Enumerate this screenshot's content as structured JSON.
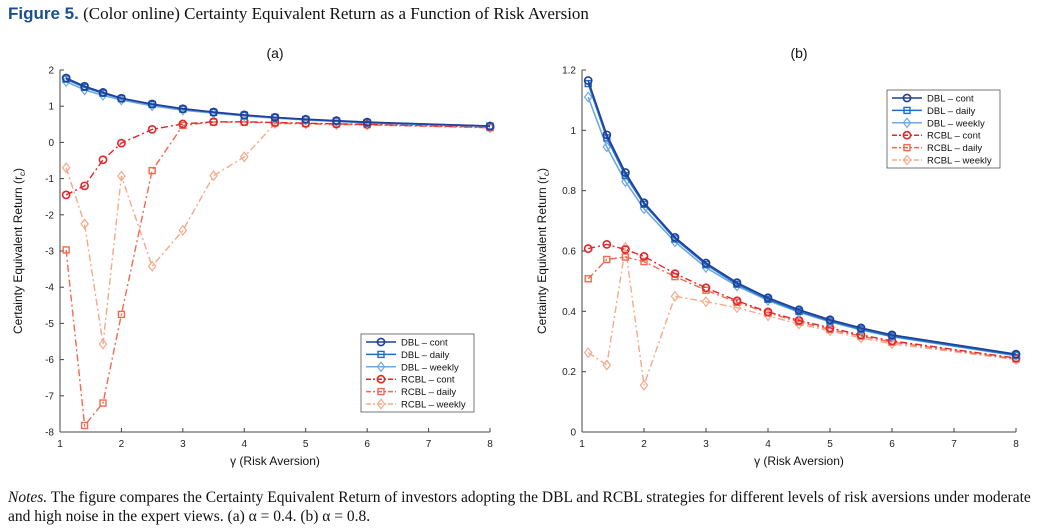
{
  "figure": {
    "label": "Figure 5.",
    "title": "(Color online) Certainty Equivalent Return as a Function of Risk Aversion"
  },
  "notes": {
    "lead": "Notes.",
    "text": "The figure compares the Certainty Equivalent Return of investors adopting the DBL and RCBL strategies for different levels of risk aversions under moderate and high noise in the expert views. (a) α = 0.4. (b) α = 0.8."
  },
  "series_styles": [
    {
      "name": "DBL – cont",
      "color": "#1f3f9a",
      "marker": "circle",
      "dash": ""
    },
    {
      "name": "DBL – daily",
      "color": "#1f6fbf",
      "marker": "square",
      "dash": ""
    },
    {
      "name": "DBL – weekly",
      "color": "#6fa8e0",
      "marker": "diamond",
      "dash": ""
    },
    {
      "name": "RCBL – cont",
      "color": "#e0262b",
      "marker": "circle",
      "dash": "7,3,2,3"
    },
    {
      "name": "RCBL – daily",
      "color": "#ef6a4f",
      "marker": "square",
      "dash": "7,3,2,3"
    },
    {
      "name": "RCBL – weekly",
      "color": "#f6a98a",
      "marker": "diamond",
      "dash": "7,3,2,3"
    }
  ],
  "chart_data": [
    {
      "type": "line",
      "title": "(a)",
      "xlabel": "γ (Risk Aversion)",
      "ylabel": "Certainty Equivalent Return (r",
      "ylabel_sub": "c",
      "xlim": [
        1,
        8
      ],
      "ylim": [
        -8,
        2
      ],
      "xticks": [
        1,
        2,
        3,
        4,
        5,
        6,
        7,
        8
      ],
      "yticks": [
        -8,
        -7,
        -6,
        -5,
        -4,
        -3,
        -2,
        -1,
        0,
        1,
        2
      ],
      "legend": "bottom-right",
      "x": [
        1.1,
        1.4,
        1.7,
        2,
        2.5,
        3,
        3.5,
        4,
        4.5,
        5,
        5.5,
        6,
        8
      ],
      "series": [
        {
          "name": "DBL – cont",
          "values": [
            1.78,
            1.55,
            1.38,
            1.22,
            1.06,
            0.93,
            0.84,
            0.76,
            0.69,
            0.64,
            0.6,
            0.56,
            0.45
          ]
        },
        {
          "name": "DBL – daily",
          "values": [
            1.75,
            1.52,
            1.36,
            1.21,
            1.05,
            0.92,
            0.83,
            0.75,
            0.69,
            0.63,
            0.59,
            0.55,
            0.45
          ]
        },
        {
          "name": "DBL – weekly",
          "values": [
            1.68,
            1.45,
            1.3,
            1.17,
            1.01,
            0.89,
            0.81,
            0.73,
            0.67,
            0.62,
            0.58,
            0.54,
            0.44
          ]
        },
        {
          "name": "RCBL – cont",
          "values": [
            -1.45,
            -1.2,
            -0.48,
            -0.02,
            0.36,
            0.51,
            0.57,
            0.57,
            0.55,
            0.53,
            0.51,
            0.5,
            0.42
          ]
        },
        {
          "name": "RCBL – daily",
          "values": [
            -2.97,
            -7.82,
            -7.2,
            -4.75,
            -0.78,
            0.47,
            0.56,
            0.56,
            0.54,
            0.52,
            0.51,
            0.49,
            0.41
          ]
        },
        {
          "name": "RCBL – weekly",
          "values": [
            -0.7,
            -2.25,
            -5.57,
            -0.93,
            -3.42,
            -2.43,
            -0.92,
            -0.4,
            0.52,
            0.51,
            0.49,
            0.48,
            0.4
          ]
        }
      ]
    },
    {
      "type": "line",
      "title": "(b)",
      "xlabel": "γ (Risk Aversion)",
      "ylabel": "Certainty Equivalent Return (r",
      "ylabel_sub": "c",
      "xlim": [
        1,
        8
      ],
      "ylim": [
        0,
        1.2
      ],
      "xticks": [
        1,
        2,
        3,
        4,
        5,
        6,
        7,
        8
      ],
      "yticks": [
        0,
        0.2,
        0.4,
        0.6,
        0.8,
        1,
        1.2
      ],
      "legend": "top-right",
      "x": [
        1.1,
        1.4,
        1.7,
        2,
        2.5,
        3,
        3.5,
        4,
        4.5,
        5,
        5.5,
        6,
        8
      ],
      "series": [
        {
          "name": "DBL – cont",
          "values": [
            1.165,
            0.985,
            0.86,
            0.76,
            0.645,
            0.56,
            0.495,
            0.445,
            0.405,
            0.372,
            0.345,
            0.322,
            0.258
          ]
        },
        {
          "name": "DBL – daily",
          "values": [
            1.155,
            0.975,
            0.85,
            0.755,
            0.64,
            0.555,
            0.49,
            0.44,
            0.4,
            0.368,
            0.341,
            0.318,
            0.255
          ]
        },
        {
          "name": "DBL – weekly",
          "values": [
            1.11,
            0.945,
            0.83,
            0.74,
            0.63,
            0.545,
            0.484,
            0.436,
            0.397,
            0.365,
            0.338,
            0.316,
            0.253
          ]
        },
        {
          "name": "RCBL – cont",
          "values": [
            0.608,
            0.622,
            0.605,
            0.582,
            0.525,
            0.478,
            0.435,
            0.398,
            0.37,
            0.345,
            0.322,
            0.302,
            0.245
          ]
        },
        {
          "name": "RCBL – daily",
          "values": [
            0.508,
            0.572,
            0.58,
            0.565,
            0.515,
            0.47,
            0.43,
            0.395,
            0.365,
            0.34,
            0.318,
            0.298,
            0.242
          ]
        },
        {
          "name": "RCBL – weekly",
          "values": [
            0.263,
            0.222,
            0.612,
            0.155,
            0.45,
            0.432,
            0.412,
            0.385,
            0.358,
            0.335,
            0.312,
            0.292,
            0.24
          ]
        }
      ]
    }
  ]
}
